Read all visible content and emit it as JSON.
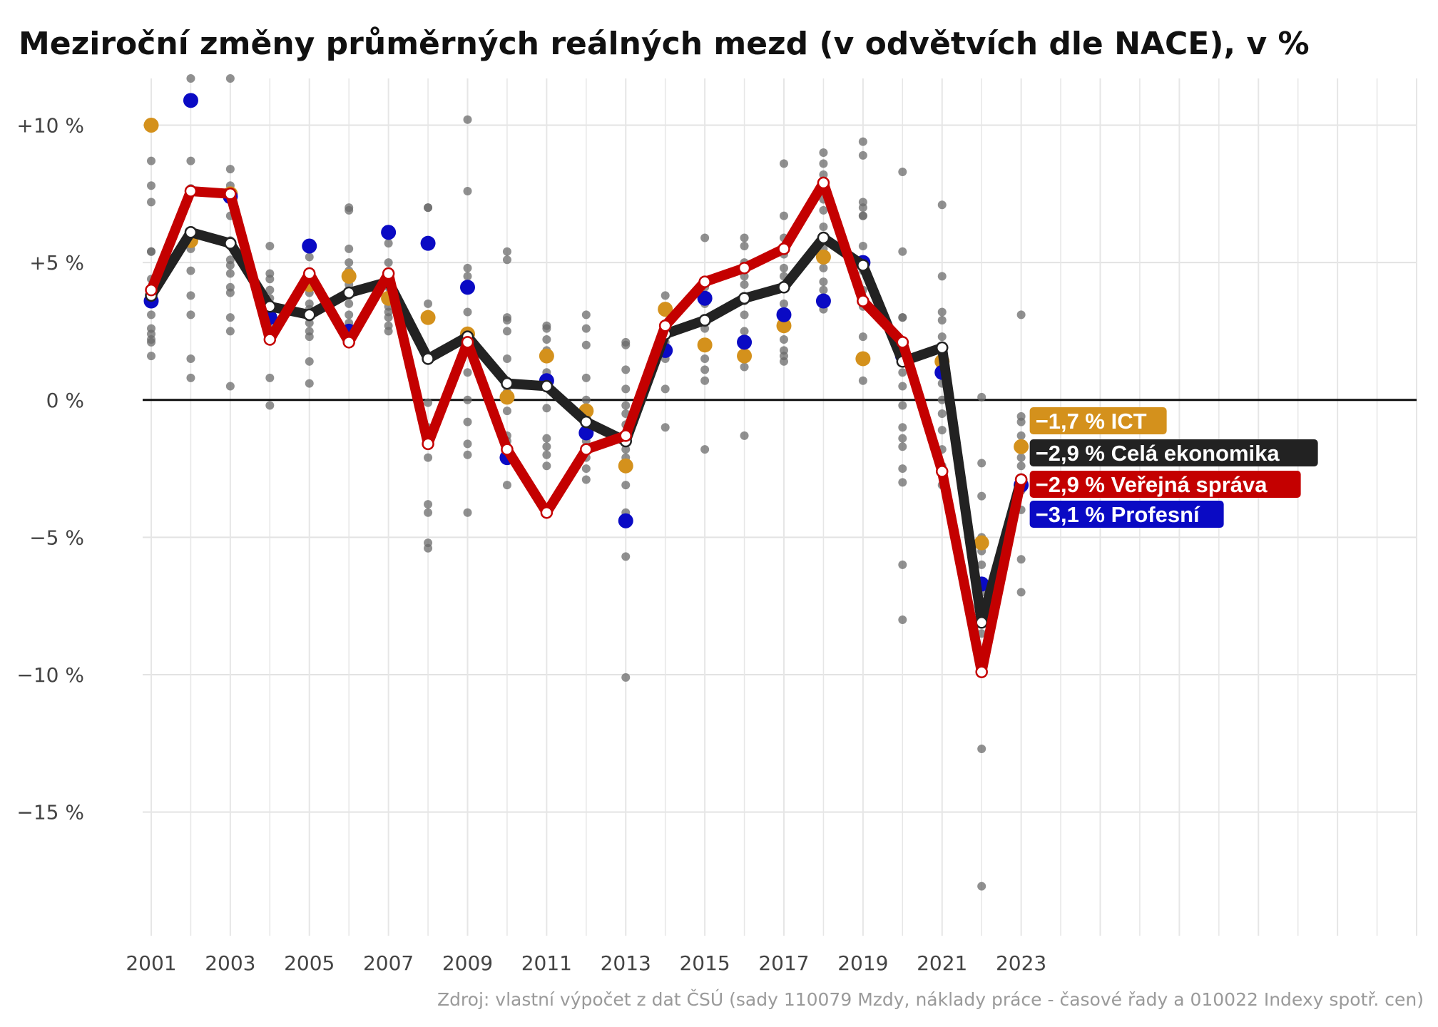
{
  "chart_data": {
    "type": "line",
    "title": "Meziroční změny průměrných reálných mezd (v odvětvích dle NACE), v %",
    "source": "Zdroj: vlastní výpočet z dat ČSÚ (sady 110079 Mzdy, náklady práce - časové řady a 010022 Indexy spotř. cen)",
    "xlabel": "",
    "ylabel": "",
    "x": [
      2001,
      2002,
      2003,
      2004,
      2005,
      2006,
      2007,
      2008,
      2009,
      2010,
      2011,
      2012,
      2013,
      2014,
      2015,
      2016,
      2017,
      2018,
      2019,
      2020,
      2021,
      2022,
      2023
    ],
    "xlim": [
      2001,
      2033
    ],
    "ylim": [
      -19.5,
      11.7
    ],
    "x_ticks": [
      {
        "value": 2001,
        "label": "2001"
      },
      {
        "value": 2003,
        "label": "2003"
      },
      {
        "value": 2005,
        "label": "2005"
      },
      {
        "value": 2007,
        "label": "2007"
      },
      {
        "value": 2009,
        "label": "2009"
      },
      {
        "value": 2011,
        "label": "2011"
      },
      {
        "value": 2013,
        "label": "2013"
      },
      {
        "value": 2015,
        "label": "2015"
      },
      {
        "value": 2017,
        "label": "2017"
      },
      {
        "value": 2019,
        "label": "2019"
      },
      {
        "value": 2021,
        "label": "2021"
      },
      {
        "value": 2023,
        "label": "2023"
      },
      {
        "value": 2025,
        "label": ""
      },
      {
        "value": 2027,
        "label": ""
      },
      {
        "value": 2029,
        "label": ""
      },
      {
        "value": 2031,
        "label": ""
      },
      {
        "value": 2033,
        "label": ""
      }
    ],
    "y_ticks": [
      {
        "value": 10,
        "label": "+10 %"
      },
      {
        "value": 5,
        "label": "+5 %"
      },
      {
        "value": 0,
        "label": "0 %"
      },
      {
        "value": -5,
        "label": "−5 %"
      },
      {
        "value": -10,
        "label": "−10 %"
      },
      {
        "value": -15,
        "label": "−15 %"
      }
    ],
    "grid": true,
    "zero_line": true,
    "series": [
      {
        "key": "celkem",
        "label": "−2,9 % Celá ekonomika",
        "color": "#222222",
        "style": "line",
        "values": [
          3.8,
          6.1,
          5.7,
          3.4,
          3.1,
          3.9,
          4.3,
          1.5,
          2.3,
          0.6,
          0.5,
          -0.8,
          -1.5,
          2.4,
          2.9,
          3.7,
          4.1,
          5.9,
          4.9,
          1.4,
          1.9,
          -8.1,
          -2.9
        ]
      },
      {
        "key": "verejna_sprava",
        "label": "−2,9 % Veřejná správa",
        "color": "#c40000",
        "style": "line",
        "values": [
          4.0,
          7.6,
          7.5,
          2.2,
          4.6,
          2.1,
          4.6,
          -1.6,
          2.1,
          -1.8,
          -4.1,
          -1.8,
          -1.3,
          2.7,
          4.3,
          4.8,
          5.5,
          7.9,
          3.6,
          2.1,
          -2.6,
          -9.9,
          -2.9
        ]
      },
      {
        "key": "ict",
        "label": "−1,7 % ICT",
        "color": "#d4911c",
        "style": "points",
        "values": [
          10.0,
          5.8,
          7.5,
          3.0,
          4.2,
          4.5,
          3.7,
          3.0,
          2.4,
          0.1,
          1.6,
          -0.4,
          -2.4,
          3.3,
          2.0,
          1.6,
          2.7,
          5.2,
          1.5,
          1.8,
          1.4,
          -5.2,
          -1.7
        ]
      },
      {
        "key": "profesni",
        "label": "−3,1 % Profesní",
        "color": "#0a0ac4",
        "style": "points",
        "values": [
          3.6,
          10.9,
          7.4,
          3.0,
          5.6,
          2.5,
          6.1,
          5.7,
          4.1,
          -2.1,
          0.7,
          -1.2,
          -4.4,
          1.8,
          3.7,
          2.1,
          3.1,
          3.6,
          5.0,
          1.6,
          1.0,
          -6.7,
          -3.1
        ]
      }
    ],
    "other_industries": {
      "color": "#6b6b6b",
      "points_by_year": [
        [
          8.7,
          7.8,
          7.2,
          5.4,
          5.4,
          4.4,
          3.5,
          3.1,
          2.6,
          2.4,
          2.2,
          2.1,
          1.6
        ],
        [
          11.7,
          8.7,
          7.7,
          5.5,
          4.7,
          3.8,
          3.1,
          1.5,
          0.8
        ],
        [
          11.7,
          8.4,
          7.8,
          6.7,
          5.8,
          5.6,
          5.1,
          4.9,
          4.6,
          4.1,
          3.9,
          3.0,
          2.5,
          0.5
        ],
        [
          5.6,
          4.6,
          4.4,
          4.0,
          3.7,
          3.4,
          3.2,
          2.9,
          2.6,
          2.4,
          0.8,
          -0.2
        ],
        [
          5.2,
          4.4,
          3.9,
          3.5,
          3.3,
          3.0,
          2.8,
          2.5,
          2.3,
          1.4,
          0.6
        ],
        [
          7.0,
          6.9,
          5.5,
          5.0,
          4.7,
          4.2,
          3.8,
          3.5,
          3.1,
          2.8,
          2.5,
          2.2
        ],
        [
          5.7,
          5.0,
          4.5,
          4.1,
          3.7,
          3.4,
          3.2,
          3.0,
          2.7,
          2.5
        ],
        [
          7.0,
          7.0,
          3.5,
          3.0,
          1.5,
          -0.1,
          -1.0,
          -2.1,
          -3.8,
          -4.1,
          -5.2,
          -5.4
        ],
        [
          10.2,
          7.6,
          4.8,
          4.5,
          3.2,
          2.5,
          2.0,
          1.0,
          0.0,
          -0.8,
          -1.6,
          -2.0,
          -4.1
        ],
        [
          5.4,
          5.1,
          3.0,
          2.9,
          2.5,
          1.5,
          0.7,
          0.3,
          -0.4,
          -1.3,
          -1.5,
          -1.8,
          -3.1
        ],
        [
          2.7,
          2.6,
          2.2,
          1.8,
          1.5,
          1.0,
          0.5,
          -0.3,
          -1.4,
          -1.7,
          -2.0,
          -2.4
        ],
        [
          3.1,
          2.6,
          2.0,
          0.8,
          0.0,
          -0.5,
          -1.1,
          -1.5,
          -2.1,
          -2.5,
          -2.9
        ],
        [
          2.1,
          2.0,
          1.1,
          0.4,
          -0.2,
          -0.5,
          -0.9,
          -1.4,
          -1.8,
          -2.1,
          -3.1,
          -4.1,
          -4.5,
          -5.7,
          -10.1
        ],
        [
          3.8,
          3.2,
          2.6,
          2.1,
          1.5,
          0.4,
          -1.0
        ],
        [
          5.9,
          4.1,
          3.5,
          2.8,
          2.6,
          2.0,
          1.5,
          1.1,
          0.7,
          -1.8
        ],
        [
          5.9,
          5.6,
          5.0,
          4.5,
          4.2,
          3.6,
          3.1,
          2.5,
          2.2,
          1.2,
          -1.3
        ],
        [
          8.6,
          6.7,
          5.9,
          5.3,
          4.8,
          4.5,
          4.1,
          3.5,
          3.0,
          2.2,
          1.8,
          1.6,
          1.4
        ],
        [
          9.0,
          8.6,
          8.2,
          7.6,
          7.3,
          6.9,
          6.3,
          5.9,
          5.5,
          5.1,
          4.8,
          4.3,
          4.0,
          3.6,
          3.3
        ],
        [
          9.4,
          8.9,
          7.2,
          7.0,
          6.7,
          6.7,
          5.6,
          4.7,
          4.0,
          3.4,
          2.3,
          0.7
        ],
        [
          8.3,
          5.4,
          3.0,
          3.0,
          2.1,
          1.4,
          1.0,
          0.5,
          -0.2,
          -1.0,
          -1.4,
          -1.7,
          -2.5,
          -3.0,
          -6.0,
          -8.0
        ],
        [
          7.1,
          4.5,
          3.2,
          2.9,
          2.3,
          1.9,
          1.4,
          1.0,
          0.6,
          0.0,
          -0.5,
          -1.1,
          -1.8,
          -2.4,
          -3.1
        ],
        [
          0.1,
          -2.3,
          -3.5,
          -5.0,
          -5.5,
          -6.0,
          -6.6,
          -7.0,
          -7.5,
          -8.5,
          -12.7,
          -17.7
        ],
        [
          3.1,
          -0.6,
          -0.8,
          -1.3,
          -2.1,
          -2.4,
          -3.3,
          -4.0,
          -5.8,
          -7.0
        ]
      ]
    },
    "end_labels": [
      {
        "series": "ict",
        "text": "−1,7 % ICT",
        "color": "#d4911c"
      },
      {
        "series": "celkem",
        "text": "−2,9 % Celá ekonomika",
        "color": "#222222"
      },
      {
        "series": "verejna_sprava",
        "text": "−2,9 % Veřejná správa",
        "color": "#c40000"
      },
      {
        "series": "profesni",
        "text": "−3,1 % Profesní",
        "color": "#0a0ac4"
      }
    ]
  }
}
